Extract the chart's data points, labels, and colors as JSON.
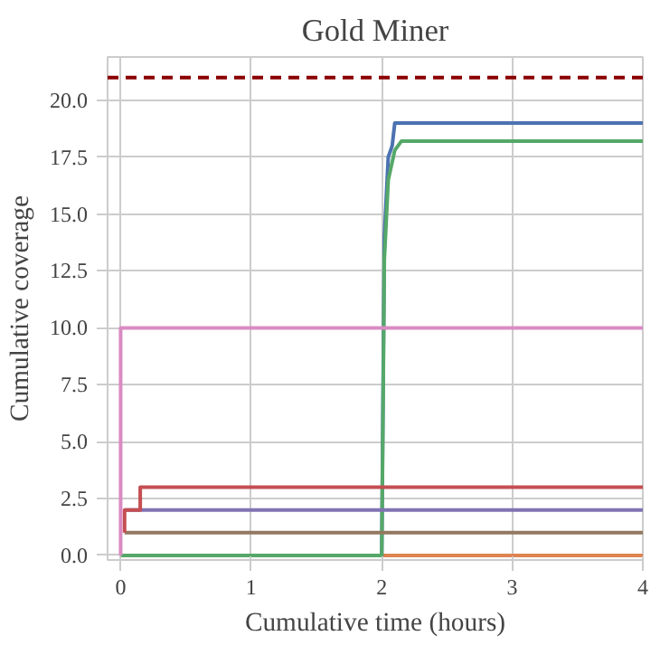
{
  "chart_data": {
    "type": "line",
    "title": "Gold Miner",
    "xlabel": "Cumulative time (hours)",
    "ylabel": "Cumulative coverage",
    "xlim": [
      -0.1,
      4
    ],
    "ylim": [
      -0.2,
      21.9
    ],
    "xticks": [
      0,
      1,
      2,
      3,
      4
    ],
    "yticks": [
      {
        "value": 0,
        "label": "0.0"
      },
      {
        "value": 2.5,
        "label": "2.5"
      },
      {
        "value": 5,
        "label": "5.0"
      },
      {
        "value": 7.5,
        "label": "7.5"
      },
      {
        "value": 10,
        "label": "10.0"
      },
      {
        "value": 12.5,
        "label": "12.5"
      },
      {
        "value": 15,
        "label": "15.0"
      },
      {
        "value": 17.5,
        "label": "17.5"
      },
      {
        "value": 20,
        "label": "20.0"
      }
    ],
    "grid": true,
    "line_style": "solid",
    "series": [
      {
        "color": "#dd8452",
        "x": [
          2.0,
          4
        ],
        "values": [
          0,
          0
        ]
      },
      {
        "color": "#4c72b0",
        "x": [
          2.0,
          2.02,
          2.05,
          2.08,
          2.1,
          4
        ],
        "values": [
          0,
          14,
          17.5,
          18,
          19,
          19
        ]
      },
      {
        "color": "#55a868",
        "x": [
          0,
          2.0,
          2.02,
          2.05,
          2.1,
          2.15,
          4
        ],
        "values": [
          0,
          0,
          13,
          16.5,
          17.8,
          18.2,
          18.2
        ]
      },
      {
        "color": "#937860",
        "x": [
          0.03,
          4
        ],
        "values": [
          1,
          1
        ]
      },
      {
        "color": "#8172b3",
        "x": [
          0.03,
          4
        ],
        "values": [
          2,
          2
        ]
      },
      {
        "color": "#c44e52",
        "x": [
          0.03,
          0.03,
          0.15,
          0.15,
          4
        ],
        "values": [
          1,
          2,
          2,
          3,
          3
        ]
      },
      {
        "color": "#da8bc3",
        "x": [
          0,
          0,
          4
        ],
        "values": [
          0,
          10,
          10
        ]
      }
    ],
    "ref_lines": [
      {
        "axis": "y",
        "value": 21,
        "color": "#8b0000",
        "line_style": "dashed"
      }
    ]
  }
}
